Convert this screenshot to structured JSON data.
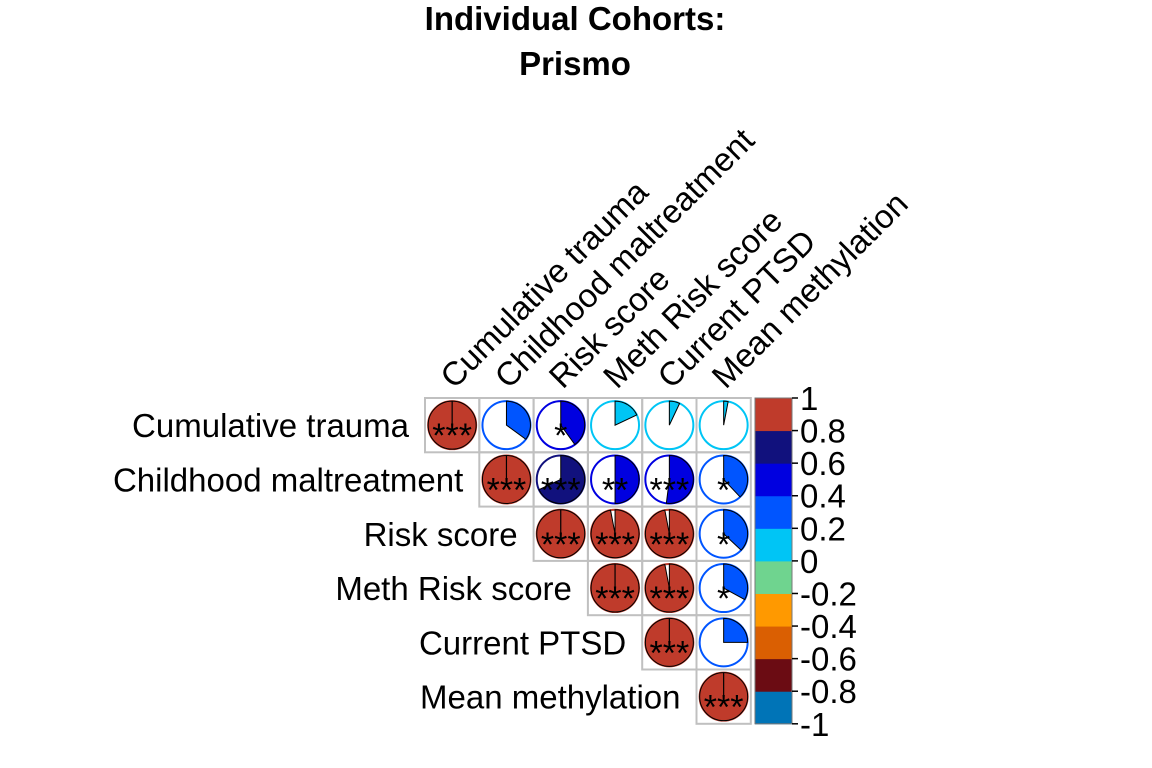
{
  "chart_data": {
    "type": "heatmap",
    "title_lines": [
      "Individual Cohorts:",
      "Prismo"
    ],
    "variables": [
      "Cumulative trauma",
      "Childhood maltreatment",
      "Risk score",
      "Meth Risk score",
      "Current PTSD",
      "Mean methylation"
    ],
    "matrix": [
      [
        1.0,
        0.35,
        0.4,
        0.18,
        0.07,
        0.03
      ],
      [
        null,
        1.0,
        0.68,
        0.5,
        0.52,
        0.38
      ],
      [
        null,
        null,
        1.0,
        0.97,
        0.97,
        0.37
      ],
      [
        null,
        null,
        null,
        1.0,
        0.97,
        0.33
      ],
      [
        null,
        null,
        null,
        null,
        1.0,
        0.25
      ],
      [
        null,
        null,
        null,
        null,
        null,
        1.0
      ]
    ],
    "significance": [
      [
        "***",
        "",
        "*",
        "",
        "",
        ""
      ],
      [
        "",
        "***",
        "***",
        "**",
        "***",
        "*"
      ],
      [
        "",
        "",
        "***",
        "***",
        "***",
        "*"
      ],
      [
        "",
        "",
        "",
        "***",
        "***",
        "*"
      ],
      [
        "",
        "",
        "",
        "",
        "***",
        ""
      ],
      [
        "",
        "",
        "",
        "",
        "",
        "***"
      ]
    ],
    "colorbar": {
      "ticks": [
        "1",
        "0.8",
        "0.6",
        "0.4",
        "0.2",
        "0",
        "-0.2",
        "-0.4",
        "-0.6",
        "-0.8",
        "-1"
      ],
      "range": [
        -1,
        1
      ],
      "colors": [
        "#0074B7",
        "#6B0C13",
        "#DA5F02",
        "#FF9900",
        "#6FD48F",
        "#00C5F5",
        "#0055FF",
        "#0000E0",
        "#11117D",
        "#BF3B2B"
      ]
    }
  }
}
